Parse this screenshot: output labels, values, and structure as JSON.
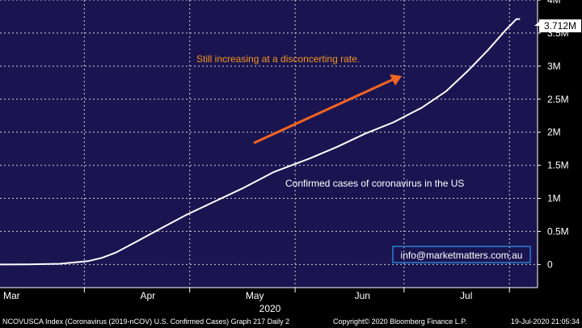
{
  "colors": {
    "plot_bg": "#1a1550",
    "line": "#ffffff",
    "grid": "#cfcfcf",
    "arrow": "#f26522",
    "annotation_text": "#f7941d",
    "watermark_border": "#2a7fd4"
  },
  "chart_data": {
    "type": "line",
    "title": "",
    "xlabel": "2020",
    "ylabel": "",
    "ylim": [
      -350000,
      4000000
    ],
    "y_ticks": [
      0,
      500000,
      1000000,
      1500000,
      2000000,
      2500000,
      3000000,
      3500000,
      4000000
    ],
    "y_tick_labels": [
      "0",
      "0.5M",
      "1M",
      "1.5M",
      "2M",
      "2.5M",
      "3M",
      "3.5M",
      "4M"
    ],
    "x_range": [
      "2020-02-22",
      "2020-07-24"
    ],
    "x_month_labels": [
      {
        "label": "Mar",
        "date": "2020-02-22"
      },
      {
        "label": "Apr",
        "date": "2020-04-01"
      },
      {
        "label": "May",
        "date": "2020-05-01"
      },
      {
        "label": "Jun",
        "date": "2020-06-01"
      },
      {
        "label": "Jul",
        "date": "2020-07-01"
      }
    ],
    "x_gridlines": [
      "2020-03-17",
      "2020-04-16",
      "2020-05-16",
      "2020-06-16",
      "2020-07-16"
    ],
    "grid": true,
    "series": [
      {
        "x": [
          "2020-02-22",
          "2020-03-01",
          "2020-03-10",
          "2020-03-18",
          "2020-03-22",
          "2020-03-26",
          "2020-04-01",
          "2020-04-08",
          "2020-04-15",
          "2020-04-23",
          "2020-05-01",
          "2020-05-10",
          "2020-05-20",
          "2020-05-28",
          "2020-06-05",
          "2020-06-13",
          "2020-06-21",
          "2020-06-28",
          "2020-07-04",
          "2020-07-10",
          "2020-07-15",
          "2020-07-18",
          "2020-07-19"
        ],
        "values": [
          0,
          1000,
          10000,
          50000,
          100000,
          180000,
          350000,
          550000,
          750000,
          950000,
          1150000,
          1400000,
          1600000,
          1780000,
          1980000,
          2150000,
          2370000,
          2620000,
          2920000,
          3250000,
          3550000,
          3712000,
          3712000
        ]
      }
    ],
    "last_value_label": "3.712M",
    "annotations": [
      {
        "text": "Still increasing at a disconcerting rate."
      },
      {
        "text": "Confirmed cases of coronavirus in the US"
      }
    ]
  },
  "watermark": "info@marketmatters.com.au",
  "footer": {
    "left": "NCOVUSCA Index (Coronavirus (2019-nCOV) U.S. Confirmed Cases) Graph 217  Daily 2",
    "middle": "Copyright© 2020 Bloomberg Finance L.P.",
    "right": "19-Jul-2020 21:05:34"
  }
}
